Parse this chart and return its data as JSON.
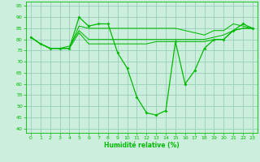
{
  "title": "",
  "xlabel": "Humidité relative (%)",
  "ylabel": "",
  "xlim": [
    -0.5,
    23.5
  ],
  "ylim": [
    38,
    97
  ],
  "yticks": [
    40,
    45,
    50,
    55,
    60,
    65,
    70,
    75,
    80,
    85,
    90,
    95
  ],
  "xticks": [
    0,
    1,
    2,
    3,
    4,
    5,
    6,
    7,
    8,
    9,
    10,
    11,
    12,
    13,
    14,
    15,
    16,
    17,
    18,
    19,
    20,
    21,
    22,
    23
  ],
  "background_color": "#cceedd",
  "grid_color": "#99ccbb",
  "line_color": "#00bb00",
  "lines": [
    [
      81,
      78,
      76,
      76,
      76,
      90,
      86,
      87,
      87,
      74,
      67,
      54,
      47,
      46,
      48,
      79,
      60,
      66,
      76,
      80,
      80,
      84,
      87,
      85
    ],
    [
      81,
      78,
      76,
      76,
      76,
      86,
      85,
      85,
      85,
      85,
      85,
      85,
      85,
      85,
      85,
      85,
      84,
      83,
      82,
      84,
      84,
      87,
      86,
      85
    ],
    [
      81,
      78,
      76,
      76,
      77,
      84,
      80,
      80,
      80,
      80,
      80,
      80,
      80,
      80,
      80,
      80,
      80,
      80,
      80,
      81,
      82,
      84,
      85,
      85
    ],
    [
      81,
      78,
      76,
      76,
      76,
      83,
      78,
      78,
      78,
      78,
      78,
      78,
      78,
      79,
      79,
      79,
      79,
      79,
      79,
      80,
      80,
      84,
      85,
      85
    ]
  ]
}
